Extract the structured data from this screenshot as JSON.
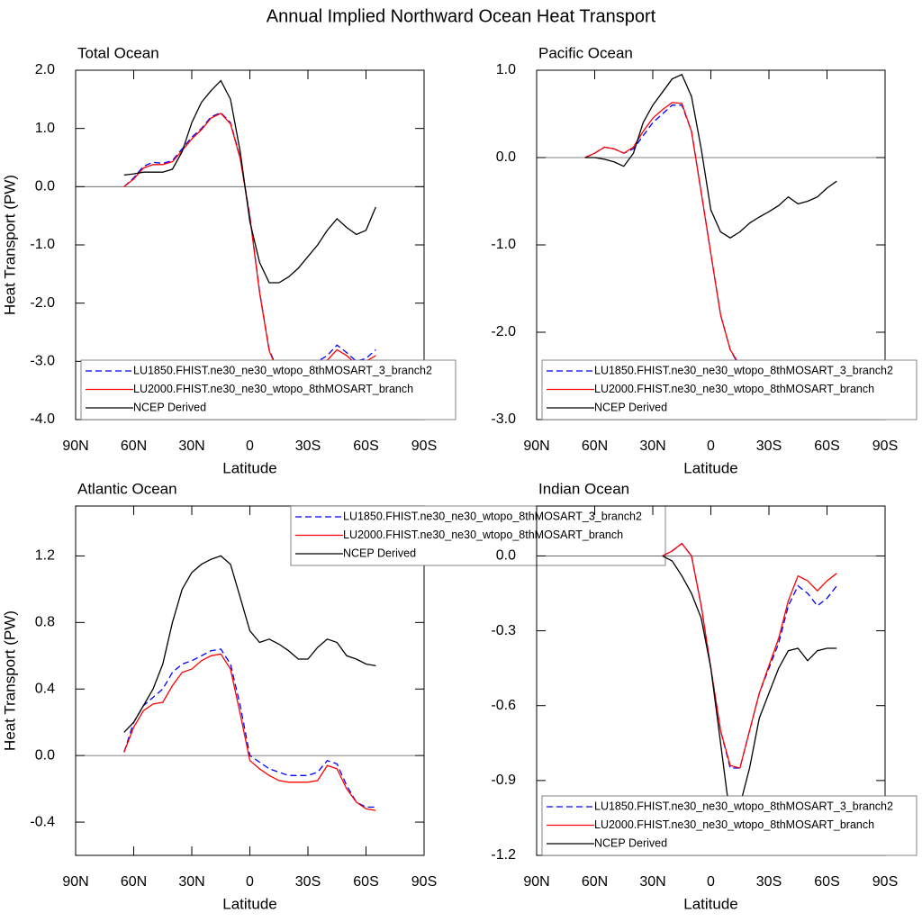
{
  "title": "Annual Implied Northward Ocean Heat Transport",
  "chart_data": [
    {
      "type": "line",
      "title": "Total Ocean",
      "xlabel": "Latitude",
      "ylabel": "Heat Transport (PW)",
      "legend": "lower left",
      "xlim": [
        90,
        -90
      ],
      "xticks": [
        {
          "value": 90,
          "label": "90N"
        },
        {
          "value": 60,
          "label": "60N"
        },
        {
          "value": 30,
          "label": "30N"
        },
        0,
        {
          "value": -30,
          "label": "30S"
        },
        {
          "value": -60,
          "label": "60S"
        },
        {
          "value": -90,
          "label": "90S"
        }
      ],
      "ylim": [
        -4,
        2
      ],
      "yticks": [
        {
          "value": 2,
          "label": "2.0"
        },
        {
          "value": 1,
          "label": "1.0"
        },
        {
          "value": 0,
          "label": "0.0"
        },
        {
          "value": -1,
          "label": "-1.0"
        },
        {
          "value": -2,
          "label": "-2.0"
        },
        {
          "value": -3,
          "label": "-3.0"
        },
        {
          "value": -4,
          "label": "-4.0"
        }
      ],
      "x": [
        65,
        60,
        55,
        50,
        45,
        40,
        35,
        30,
        25,
        20,
        15,
        10,
        5,
        0,
        -5,
        -10,
        -15,
        -20,
        -25,
        -30,
        -35,
        -40,
        -45,
        -50,
        -55,
        -60,
        -65
      ],
      "series": [
        {
          "name": "LU1850.FHIST.ne30_ne30_wtopo_8thMOSART_3_branch2",
          "color": "#0000ff",
          "style": "dashed",
          "values": [
            0.0,
            0.15,
            0.35,
            0.42,
            0.4,
            0.45,
            0.65,
            0.85,
            1.0,
            1.2,
            1.27,
            1.1,
            0.5,
            -0.5,
            -1.8,
            -2.8,
            -3.2,
            -3.3,
            -3.2,
            -3.1,
            -3.0,
            -2.9,
            -2.72,
            -2.85,
            -3.0,
            -2.95,
            -2.8
          ]
        },
        {
          "name": "LU2000.FHIST.ne30_ne30_wtopo_8thMOSART_branch",
          "color": "#ff0000",
          "style": "solid",
          "values": [
            0.0,
            0.13,
            0.32,
            0.38,
            0.38,
            0.43,
            0.62,
            0.82,
            0.98,
            1.18,
            1.26,
            1.08,
            0.48,
            -0.52,
            -1.82,
            -2.82,
            -3.22,
            -3.32,
            -3.25,
            -3.15,
            -3.05,
            -2.98,
            -2.8,
            -2.9,
            -3.05,
            -3.0,
            -2.9
          ]
        },
        {
          "name": "NCEP Derived",
          "color": "#000000",
          "style": "solid",
          "values": [
            0.2,
            0.22,
            0.25,
            0.25,
            0.25,
            0.3,
            0.6,
            1.1,
            1.45,
            1.65,
            1.82,
            1.5,
            0.6,
            -0.6,
            -1.3,
            -1.65,
            -1.65,
            -1.55,
            -1.4,
            -1.2,
            -1.0,
            -0.75,
            -0.55,
            -0.7,
            -0.82,
            -0.75,
            -0.35
          ]
        }
      ]
    },
    {
      "type": "line",
      "title": "Pacific Ocean",
      "xlabel": "Latitude",
      "legend": "lower left",
      "xlim": [
        90,
        -90
      ],
      "xticks": [
        {
          "value": 90,
          "label": "90N"
        },
        {
          "value": 60,
          "label": "60N"
        },
        {
          "value": 30,
          "label": "30N"
        },
        0,
        {
          "value": -30,
          "label": "30S"
        },
        {
          "value": -60,
          "label": "60S"
        },
        {
          "value": -90,
          "label": "90S"
        }
      ],
      "ylim": [
        -3,
        1
      ],
      "yticks": [
        {
          "value": 1,
          "label": "1.0"
        },
        {
          "value": 0,
          "label": "0.0"
        },
        {
          "value": -1,
          "label": "-1.0"
        },
        {
          "value": -2,
          "label": "-2.0"
        },
        {
          "value": -3,
          "label": "-3.0"
        }
      ],
      "x": [
        65,
        60,
        55,
        50,
        45,
        40,
        35,
        30,
        25,
        20,
        15,
        10,
        5,
        0,
        -5,
        -10,
        -15,
        -20,
        -25,
        -30,
        -35,
        -40,
        -45,
        -50,
        -55,
        -60,
        -65
      ],
      "series": [
        {
          "name": "LU1850.FHIST.ne30_ne30_wtopo_8thMOSART_3_branch2",
          "color": "#0000ff",
          "style": "dashed",
          "values": [
            0.0,
            0.05,
            0.12,
            0.1,
            0.05,
            0.1,
            0.25,
            0.4,
            0.5,
            0.6,
            0.6,
            0.3,
            -0.4,
            -1.1,
            -1.8,
            -2.2,
            -2.4,
            -2.42,
            -2.42,
            -2.45,
            -2.5,
            -2.55,
            -2.6,
            -2.6,
            -2.55,
            -2.45,
            -2.35
          ]
        },
        {
          "name": "LU2000.FHIST.ne30_ne30_wtopo_8thMOSART_branch",
          "color": "#ff0000",
          "style": "solid",
          "values": [
            0.0,
            0.05,
            0.12,
            0.1,
            0.05,
            0.12,
            0.3,
            0.45,
            0.55,
            0.63,
            0.62,
            0.3,
            -0.4,
            -1.1,
            -1.8,
            -2.2,
            -2.38,
            -2.4,
            -2.4,
            -2.45,
            -2.5,
            -2.55,
            -2.6,
            -2.62,
            -2.6,
            -2.55,
            -2.45
          ]
        },
        {
          "name": "NCEP Derived",
          "color": "#000000",
          "style": "solid",
          "values": [
            0.0,
            0.0,
            -0.02,
            -0.05,
            -0.1,
            0.05,
            0.4,
            0.6,
            0.75,
            0.9,
            0.95,
            0.7,
            0.1,
            -0.6,
            -0.85,
            -0.92,
            -0.85,
            -0.75,
            -0.68,
            -0.62,
            -0.55,
            -0.45,
            -0.53,
            -0.5,
            -0.45,
            -0.35,
            -0.27
          ]
        }
      ]
    },
    {
      "type": "line",
      "title": "Atlantic Ocean",
      "xlabel": "Latitude",
      "ylabel": "Heat Transport (PW)",
      "legend": "upper right",
      "xlim": [
        90,
        -90
      ],
      "xticks": [
        {
          "value": 90,
          "label": "90N"
        },
        {
          "value": 60,
          "label": "60N"
        },
        {
          "value": 30,
          "label": "30N"
        },
        0,
        {
          "value": -30,
          "label": "30S"
        },
        {
          "value": -60,
          "label": "60S"
        },
        {
          "value": -90,
          "label": "90S"
        }
      ],
      "ylim": [
        -0.6,
        1.5
      ],
      "yticks": [
        1.2,
        0.8,
        0.4,
        {
          "value": 0,
          "label": "0.0"
        },
        -0.4
      ],
      "x": [
        65,
        60,
        55,
        50,
        45,
        40,
        35,
        30,
        25,
        20,
        15,
        10,
        5,
        0,
        -5,
        -10,
        -15,
        -20,
        -25,
        -30,
        -35,
        -40,
        -45,
        -50,
        -55,
        -60,
        -65
      ],
      "series": [
        {
          "name": "LU1850.FHIST.ne30_ne30_wtopo_8thMOSART_3_branch2",
          "color": "#0000ff",
          "style": "dashed",
          "values": [
            0.02,
            0.2,
            0.3,
            0.35,
            0.4,
            0.5,
            0.55,
            0.57,
            0.6,
            0.63,
            0.64,
            0.55,
            0.3,
            0.0,
            -0.04,
            -0.08,
            -0.1,
            -0.12,
            -0.12,
            -0.12,
            -0.1,
            -0.03,
            -0.05,
            -0.18,
            -0.28,
            -0.31,
            -0.31
          ]
        },
        {
          "name": "LU2000.FHIST.ne30_ne30_wtopo_8thMOSART_branch",
          "color": "#ff0000",
          "style": "solid",
          "values": [
            0.02,
            0.17,
            0.27,
            0.31,
            0.32,
            0.42,
            0.5,
            0.52,
            0.57,
            0.6,
            0.61,
            0.52,
            0.25,
            -0.03,
            -0.08,
            -0.12,
            -0.15,
            -0.16,
            -0.16,
            -0.16,
            -0.15,
            -0.06,
            -0.08,
            -0.2,
            -0.28,
            -0.32,
            -0.33
          ]
        },
        {
          "name": "NCEP Derived",
          "color": "#000000",
          "style": "solid",
          "values": [
            0.14,
            0.2,
            0.3,
            0.4,
            0.55,
            0.8,
            1.0,
            1.1,
            1.15,
            1.18,
            1.2,
            1.15,
            0.95,
            0.75,
            0.68,
            0.7,
            0.67,
            0.63,
            0.58,
            0.58,
            0.65,
            0.7,
            0.68,
            0.6,
            0.58,
            0.55,
            0.54
          ]
        }
      ]
    },
    {
      "type": "line",
      "title": "Indian Ocean",
      "xlabel": "Latitude",
      "legend": "lower left",
      "xlim": [
        90,
        -90
      ],
      "xticks": [
        {
          "value": 90,
          "label": "90N"
        },
        {
          "value": 60,
          "label": "60N"
        },
        {
          "value": 30,
          "label": "30N"
        },
        0,
        {
          "value": -30,
          "label": "30S"
        },
        {
          "value": -60,
          "label": "60S"
        },
        {
          "value": -90,
          "label": "90S"
        }
      ],
      "ylim": [
        -1.2,
        0.2
      ],
      "yticks": [
        {
          "value": 0,
          "label": "0.0"
        },
        -0.3,
        -0.6,
        -0.9,
        -1.2
      ],
      "x": [
        65,
        60,
        55,
        50,
        45,
        40,
        35,
        30,
        25,
        20,
        15,
        10,
        5,
        0,
        -5,
        -10,
        -15,
        -20,
        -25,
        -30,
        -35,
        -40,
        -45,
        -50,
        -55,
        -60,
        -65
      ],
      "series": [
        {
          "name": "LU1850.FHIST.ne30_ne30_wtopo_8thMOSART_3_branch2",
          "color": "#0000ff",
          "style": "dashed",
          "values": [
            null,
            null,
            null,
            null,
            null,
            null,
            null,
            null,
            0.0,
            0.02,
            0.05,
            0.0,
            -0.2,
            -0.45,
            -0.7,
            -0.85,
            -0.85,
            -0.7,
            -0.55,
            -0.45,
            -0.35,
            -0.2,
            -0.12,
            -0.15,
            -0.2,
            -0.17,
            -0.12
          ]
        },
        {
          "name": "LU2000.FHIST.ne30_ne30_wtopo_8thMOSART_branch",
          "color": "#ff0000",
          "style": "solid",
          "values": [
            null,
            null,
            null,
            null,
            null,
            null,
            null,
            null,
            0.0,
            0.02,
            0.05,
            0.0,
            -0.2,
            -0.45,
            -0.7,
            -0.84,
            -0.85,
            -0.7,
            -0.55,
            -0.44,
            -0.33,
            -0.18,
            -0.08,
            -0.1,
            -0.14,
            -0.1,
            -0.07
          ]
        },
        {
          "name": "NCEP Derived",
          "color": "#000000",
          "style": "solid",
          "values": [
            null,
            null,
            null,
            null,
            null,
            null,
            null,
            null,
            0.0,
            -0.02,
            -0.08,
            -0.15,
            -0.25,
            -0.45,
            -0.75,
            -1.05,
            -1.0,
            -0.85,
            -0.65,
            -0.55,
            -0.45,
            -0.38,
            -0.37,
            -0.42,
            -0.38,
            -0.37,
            -0.37
          ]
        }
      ]
    }
  ]
}
